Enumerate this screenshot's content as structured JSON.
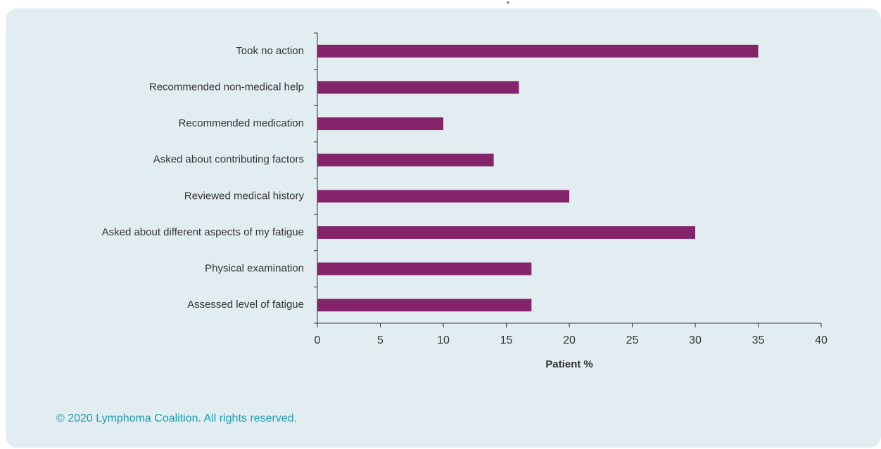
{
  "chart_data": {
    "type": "barh",
    "annotation": "*",
    "categories": [
      "Took no action",
      "Recommended non-medical help",
      "Recommended medication",
      "Asked about contributing factors",
      "Reviewed medical history",
      "Asked about different aspects of my fatigue",
      "Physical examination",
      "Assessed level of fatigue"
    ],
    "values": [
      35,
      16,
      10,
      14,
      20,
      30,
      17,
      17
    ],
    "color": "#84246a",
    "xlabel": "Patient %",
    "xlim": [
      0,
      40
    ],
    "xticks": [
      0,
      5,
      10,
      15,
      20,
      25,
      30,
      35,
      40
    ],
    "source": "© 2020 Lymphoma Coalition. All rights reserved."
  }
}
